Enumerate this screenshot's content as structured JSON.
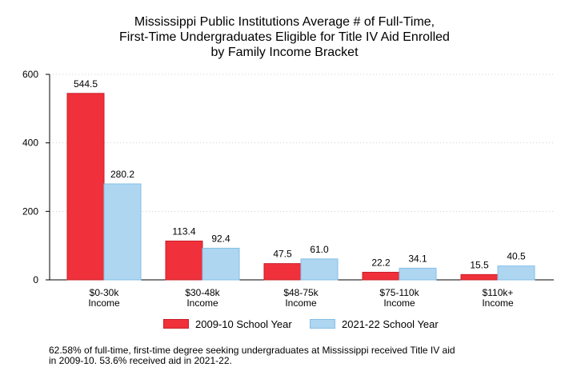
{
  "chart_data": {
    "type": "bar",
    "title_lines": [
      "Mississippi Public Institutions Average # of Full-Time,",
      "First-Time Undergraduates Eligible for Title IV Aid Enrolled",
      "by Family Income Bracket"
    ],
    "categories": [
      [
        "$0-30k",
        "Income"
      ],
      [
        "$30-48k",
        "Income"
      ],
      [
        "$48-75k",
        "Income"
      ],
      [
        "$75-110k",
        "Income"
      ],
      [
        "$110k+",
        "Income"
      ]
    ],
    "series": [
      {
        "name": "2009-10 School Year",
        "values": [
          544.5,
          113.4,
          47.5,
          22.2,
          15.5
        ],
        "labels": [
          "544.5",
          "113.4",
          "47.5",
          "22.2",
          "15.5"
        ],
        "color": "#f0303a",
        "border": "#c8202a"
      },
      {
        "name": "2021-22 School Year",
        "values": [
          280.2,
          92.4,
          61.0,
          34.1,
          40.5
        ],
        "labels": [
          "280.2",
          "92.4",
          "61.0",
          "34.1",
          "40.5"
        ],
        "color": "#aed6f1",
        "border": "#85bfe6"
      }
    ],
    "yticks": [
      0,
      200,
      400,
      600
    ],
    "ylim": [
      0,
      600
    ],
    "grid": "horizontal-dotted",
    "legend_position": "bottom",
    "xlabel": "",
    "ylabel": ""
  },
  "footnote_lines": [
    "62.58% of full-time, first-time degree seeking undergraduates at Mississippi received Title IV aid",
    "in 2009-10. 53.6% received aid in 2021-22."
  ]
}
